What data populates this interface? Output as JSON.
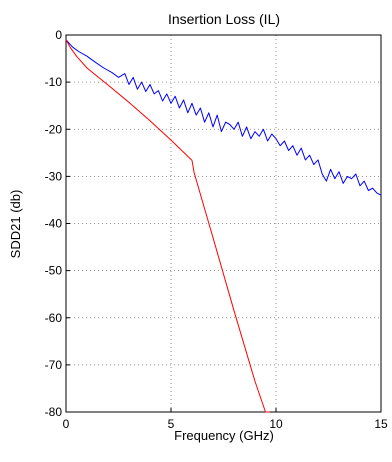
{
  "chart_data": {
    "type": "line",
    "title": "Insertion Loss (IL)",
    "xlabel": "Frequency (GHz)",
    "ylabel": "SDD21 (db)",
    "xlim": [
      0,
      15
    ],
    "ylim": [
      -80,
      0
    ],
    "xticks": [
      "0",
      "5",
      "10",
      "15"
    ],
    "yticks": [
      "0",
      "-10",
      "-20",
      "-30",
      "-40",
      "-50",
      "-60",
      "-70",
      "-80"
    ],
    "grid": true,
    "series": [
      {
        "color": "#0000ff",
        "x": [
          0,
          0.3,
          0.6,
          1.0,
          1.4,
          1.8,
          2.2,
          2.5,
          2.8,
          3.0,
          3.2,
          3.4,
          3.6,
          3.8,
          4.0,
          4.2,
          4.4,
          4.6,
          4.8,
          5.0,
          5.2,
          5.4,
          5.6,
          5.8,
          6.0,
          6.2,
          6.4,
          6.6,
          6.8,
          7.0,
          7.2,
          7.4,
          7.6,
          7.8,
          8.0,
          8.2,
          8.4,
          8.6,
          8.8,
          9.0,
          9.2,
          9.4,
          9.6,
          9.8,
          10.0,
          10.2,
          10.4,
          10.6,
          10.8,
          11.0,
          11.2,
          11.4,
          11.6,
          11.8,
          12.0,
          12.2,
          12.4,
          12.6,
          12.8,
          13.0,
          13.2,
          13.4,
          13.6,
          13.8,
          14.0,
          14.2,
          14.4,
          14.6,
          14.8,
          15.0
        ],
        "y": [
          -1,
          -2.5,
          -3.5,
          -4.5,
          -5.8,
          -7.0,
          -8.0,
          -9.0,
          -8.2,
          -10.5,
          -9.0,
          -11.5,
          -10.0,
          -12.0,
          -10.5,
          -12.5,
          -11.8,
          -14.0,
          -12.5,
          -14.5,
          -13.0,
          -15.5,
          -13.8,
          -16.5,
          -14.5,
          -17.0,
          -15.5,
          -18.5,
          -16.5,
          -19.5,
          -17.0,
          -20.5,
          -18.5,
          -19.0,
          -20.0,
          -18.5,
          -21.5,
          -19.5,
          -22.0,
          -20.5,
          -21.5,
          -20.0,
          -22.5,
          -21.0,
          -22.0,
          -23.5,
          -22.5,
          -24.5,
          -23.5,
          -25.5,
          -24.0,
          -26.5,
          -25.5,
          -27.5,
          -26.5,
          -29.5,
          -31.0,
          -28.5,
          -30.5,
          -29.0,
          -31.5,
          -30.0,
          -30.5,
          -29.5,
          -32.0,
          -31.0,
          -33.0,
          -32.5,
          -33.5,
          -34.0
        ]
      },
      {
        "color": "#ff0000",
        "x": [
          0,
          0.2,
          0.5,
          1.0,
          1.5,
          2.0,
          3.0,
          4.0,
          5.0,
          6.0,
          6.1,
          7.0,
          8.0,
          9.0,
          9.5,
          9.7
        ],
        "y": [
          -1.0,
          -2.6,
          -4.5,
          -7.0,
          -8.8,
          -10.6,
          -14.3,
          -18.2,
          -22.3,
          -26.6,
          -29.2,
          -43.0,
          -58.5,
          -73.5,
          -80.0,
          -80.0
        ]
      }
    ]
  }
}
